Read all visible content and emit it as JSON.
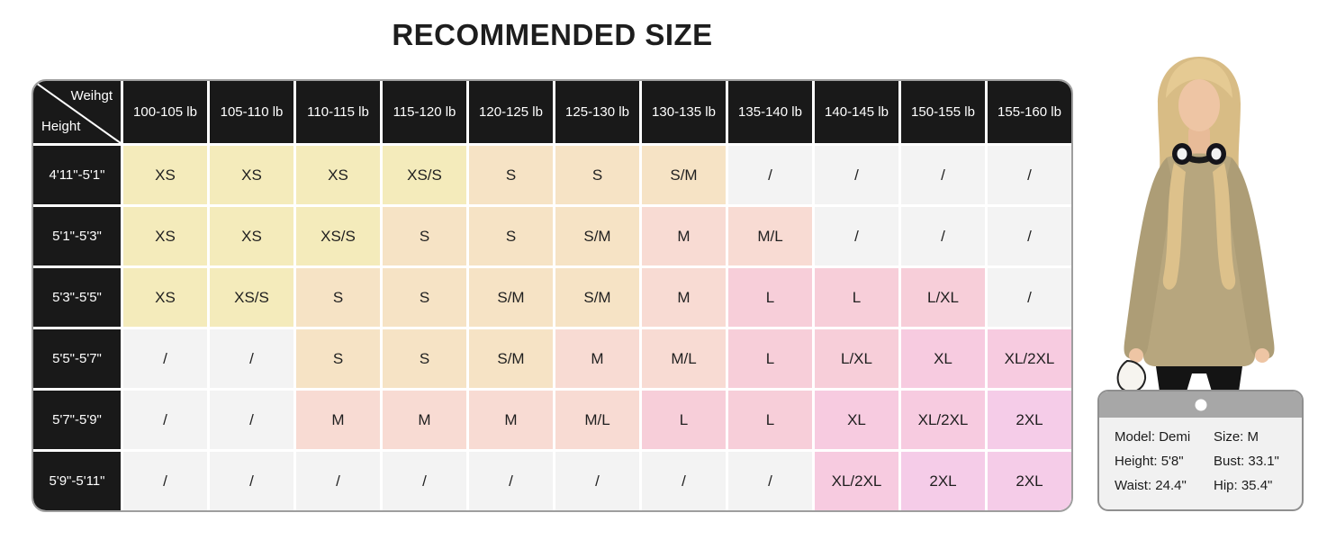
{
  "chart_data": {
    "type": "table",
    "title": "RECOMMENDED SIZE",
    "corner": {
      "top_label": "Weihgt",
      "bottom_label": "Height"
    },
    "weight_headers": [
      "100-105 lb",
      "105-110 lb",
      "110-115 lb",
      "115-120 lb",
      "120-125 lb",
      "125-130 lb",
      "130-135 lb",
      "135-140 lb",
      "140-145 lb",
      "150-155 lb",
      "155-160 lb"
    ],
    "rows": [
      {
        "height": "4'11\"-5'1\"",
        "cells": [
          "XS",
          "XS",
          "XS",
          "XS/S",
          "S",
          "S",
          "S/M",
          "/",
          "/",
          "/",
          "/"
        ]
      },
      {
        "height": "5'1\"-5'3\"",
        "cells": [
          "XS",
          "XS",
          "XS/S",
          "S",
          "S",
          "S/M",
          "M",
          "M/L",
          "/",
          "/",
          "/"
        ]
      },
      {
        "height": "5'3\"-5'5\"",
        "cells": [
          "XS",
          "XS/S",
          "S",
          "S",
          "S/M",
          "S/M",
          "M",
          "L",
          "L",
          "L/XL",
          "/"
        ]
      },
      {
        "height": "5'5\"-5'7\"",
        "cells": [
          "/",
          "/",
          "S",
          "S",
          "S/M",
          "M",
          "M/L",
          "L",
          "L/XL",
          "XL",
          "XL/2XL"
        ]
      },
      {
        "height": "5'7\"-5'9\"",
        "cells": [
          "/",
          "/",
          "M",
          "M",
          "M",
          "M/L",
          "L",
          "L",
          "XL",
          "XL/2XL",
          "2XL"
        ]
      },
      {
        "height": "5'9\"-5'11\"",
        "cells": [
          "/",
          "/",
          "/",
          "/",
          "/",
          "/",
          "/",
          "/",
          "XL/2XL",
          "2XL",
          "2XL"
        ]
      }
    ],
    "size_colors": {
      "XS": "#f4ebbb",
      "XS/S": "#f4ebbb",
      "S": "#f6e3c5",
      "S/M": "#f6e3c5",
      "M": "#f8dbd3",
      "M/L": "#f8dbd3",
      "L": "#f7ced9",
      "L/XL": "#f7ced9",
      "XL": "#f7cbe0",
      "XL/2XL": "#f7cbe0",
      "2XL": "#f5cce8",
      "/": "#f3f3f3"
    },
    "legend_position": "none",
    "grid": "white 3px gaps"
  },
  "theme": {
    "header_bg": "#191919",
    "header_text": "#ffffff",
    "grid_gap": "#ffffff",
    "table_border": "#9e9e9e",
    "title_color": "#1d1d1d",
    "cell_text": "#1f1f1f"
  },
  "model_card": {
    "fields": [
      "Model: Demi",
      "Size: M",
      "Height: 5'8\"",
      "Bust: 33.1\"",
      "Waist: 24.4\"",
      "Hip: 35.4\""
    ]
  }
}
